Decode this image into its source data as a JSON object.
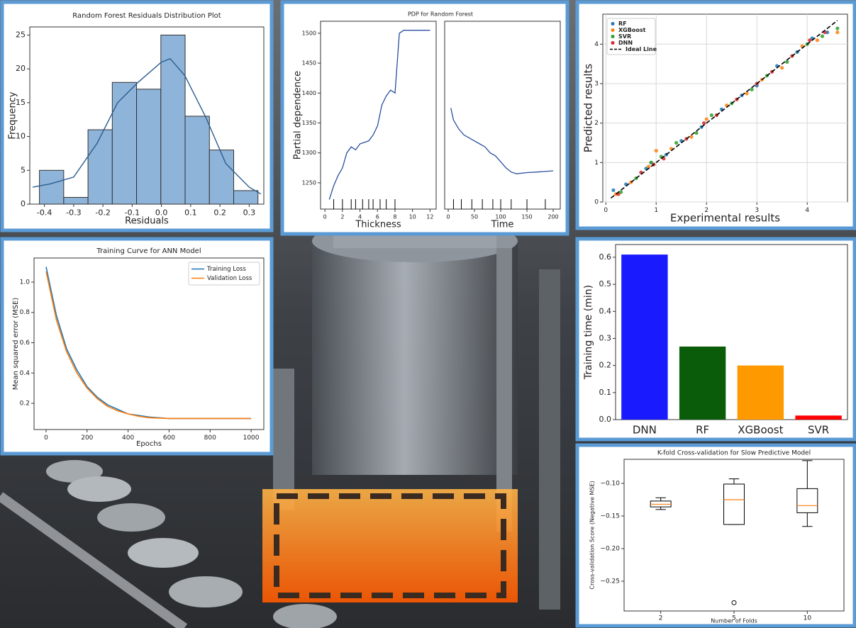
{
  "chart_data": [
    {
      "type": "histogram",
      "title": "Random Forest Residuals Distribution Plot",
      "xlabel": "Residuals",
      "ylabel": "Frequency",
      "bins": [
        -0.417,
        -0.334,
        -0.251,
        -0.168,
        -0.085,
        -0.002,
        0.081,
        0.164,
        0.247,
        0.33
      ],
      "counts": [
        5,
        1,
        11,
        18,
        17,
        25,
        13,
        8,
        2
      ],
      "color": "#8fb4d9",
      "kde": {
        "x": [
          -0.44,
          -0.38,
          -0.3,
          -0.22,
          -0.15,
          -0.08,
          0.0,
          0.03,
          0.08,
          0.15,
          0.22,
          0.3,
          0.34
        ],
        "values": [
          2.5,
          3,
          4,
          9,
          15,
          18,
          21,
          21.5,
          19,
          13,
          6,
          2.5,
          1.5
        ],
        "color": "#2c5d8f"
      },
      "xlim": [
        -0.45,
        0.35
      ],
      "xticks": [
        -0.4,
        -0.3,
        -0.2,
        -0.1,
        {
          "value": 0,
          "label": "0.0"
        },
        0.1,
        0.2,
        0.3
      ],
      "ylim": [
        0,
        26.2
      ],
      "yticks": [
        0,
        5,
        10,
        15,
        20,
        25
      ],
      "grid": false
    },
    {
      "type": "line",
      "title": "PDP for Random Forest",
      "ylabel": "Partial dependence",
      "color": "#2a4fa0",
      "ylim": [
        1206,
        1520
      ],
      "yticks": [
        1250,
        1300,
        1350,
        1400,
        1450,
        1500
      ],
      "grid": false,
      "panels": [
        {
          "xlabel": "Thickness",
          "xlim": [
            -0.5,
            12.7
          ],
          "xticks": [
            0,
            2,
            4,
            6,
            8,
            10,
            12
          ],
          "x": [
            0.5,
            1,
            1.5,
            2,
            2.5,
            3,
            3.5,
            4,
            5,
            5.5,
            6,
            6.5,
            7,
            7.5,
            8,
            8.5,
            9,
            12
          ],
          "values": [
            1222,
            1245,
            1262,
            1275,
            1300,
            1310,
            1305,
            1315,
            1320,
            1330,
            1345,
            1380,
            1395,
            1405,
            1400,
            1500,
            1505,
            1505
          ],
          "deciles": [
            1,
            2,
            3,
            3.5,
            4.3,
            5,
            5.5,
            6.3,
            7,
            8
          ]
        },
        {
          "xlabel": "Time",
          "xlim": [
            -6.8,
            213.5
          ],
          "xticks": [
            0,
            50,
            100,
            150,
            200
          ],
          "x": [
            5,
            10,
            20,
            30,
            40,
            50,
            60,
            70,
            80,
            90,
            100,
            110,
            120,
            130,
            150,
            170,
            200
          ],
          "values": [
            1375,
            1355,
            1340,
            1330,
            1325,
            1320,
            1315,
            1310,
            1300,
            1295,
            1285,
            1275,
            1268,
            1265,
            1267,
            1268,
            1270
          ],
          "deciles": [
            10,
            25,
            45,
            65,
            85,
            100,
            120,
            150,
            185
          ]
        }
      ]
    },
    {
      "type": "scatter",
      "xlabel": "Experimental results",
      "ylabel": "Predicted results",
      "legend": "upper left",
      "grid": true,
      "xlim": [
        -0.06,
        4.8
      ],
      "xticks": [
        0,
        1,
        2,
        3,
        4
      ],
      "ylim": [
        0,
        4.76
      ],
      "yticks": [
        0,
        1,
        2,
        3,
        4
      ],
      "series": [
        {
          "name": "RF",
          "color": "#1f77b4",
          "x": [
            0.15,
            0.4,
            0.8,
            0.9,
            1.2,
            1.5,
            1.9,
            2.3,
            2.7,
            3.0,
            3.4,
            3.8,
            4.1,
            4.4
          ],
          "values": [
            0.3,
            0.45,
            0.85,
            1.0,
            1.2,
            1.55,
            1.9,
            2.35,
            2.7,
            2.95,
            3.45,
            3.8,
            4.15,
            4.3
          ]
        },
        {
          "name": "XGBoost",
          "color": "#ff7f0e",
          "x": [
            0.2,
            0.5,
            0.85,
            1.0,
            1.3,
            1.7,
            2.0,
            2.4,
            2.8,
            3.1,
            3.5,
            3.9,
            4.2,
            4.6
          ],
          "values": [
            0.2,
            0.5,
            0.9,
            1.3,
            1.35,
            1.65,
            2.1,
            2.45,
            2.75,
            3.1,
            3.4,
            3.95,
            4.1,
            4.3
          ]
        },
        {
          "name": "SVR",
          "color": "#2ca02c",
          "x": [
            0.3,
            0.6,
            0.9,
            1.1,
            1.4,
            1.8,
            2.1,
            2.5,
            2.9,
            3.2,
            3.6,
            4.0,
            4.3,
            4.6
          ],
          "values": [
            0.25,
            0.6,
            1.0,
            1.15,
            1.5,
            1.75,
            2.2,
            2.5,
            2.85,
            3.2,
            3.55,
            4.0,
            4.2,
            4.4
          ]
        },
        {
          "name": "DNN",
          "color": "#d62728",
          "x": [
            0.25,
            0.7,
            0.95,
            1.15,
            1.6,
            1.95,
            2.2,
            2.6,
            3.0,
            3.3,
            3.7,
            4.05,
            4.35
          ],
          "values": [
            0.2,
            0.75,
            0.95,
            1.1,
            1.6,
            2.0,
            2.2,
            2.6,
            3.0,
            3.3,
            3.7,
            4.1,
            4.3
          ]
        }
      ],
      "ideal_line": {
        "name": "Ideal Line",
        "color": "#000000",
        "x": [
          0.1,
          4.6
        ],
        "values": [
          0.1,
          4.6
        ]
      }
    },
    {
      "type": "line",
      "title": "Training Curve for ANN Model",
      "xlabel": "Epochs",
      "ylabel": "Mean squared error (MSE)",
      "legend": "upper right",
      "grid": false,
      "xlim": [
        -58.8,
        1062
      ],
      "xticks": [
        0,
        200,
        400,
        600,
        800,
        1000
      ],
      "ylim": [
        0.027,
        1.159
      ],
      "yticks": [
        0.2,
        0.4,
        0.6,
        0.8,
        {
          "value": 1.0,
          "label": "1.0"
        }
      ],
      "x": [
        0,
        50,
        100,
        150,
        200,
        250,
        300,
        350,
        400,
        450,
        500,
        600,
        700,
        800,
        1000
      ],
      "series": [
        {
          "name": "Training Loss",
          "color": "#1f77b4",
          "values": [
            1.1,
            0.78,
            0.56,
            0.42,
            0.31,
            0.24,
            0.19,
            0.16,
            0.13,
            0.12,
            0.11,
            0.1,
            0.1,
            0.1,
            0.1
          ]
        },
        {
          "name": "Validation Loss",
          "color": "#ff7f0e",
          "values": [
            1.07,
            0.75,
            0.54,
            0.4,
            0.3,
            0.23,
            0.18,
            0.15,
            0.13,
            0.115,
            0.105,
            0.1,
            0.1,
            0.1,
            0.1
          ]
        }
      ]
    },
    {
      "type": "bar",
      "ylabel": "Training time (min)",
      "grid": false,
      "categories": [
        "DNN",
        "RF",
        "XGBoost",
        "SVR"
      ],
      "values": [
        0.61,
        0.27,
        0.2,
        0.015
      ],
      "colors": [
        "#1a1aff",
        "#0a5c0a",
        "#ff9900",
        "#ff0000"
      ],
      "ylim": [
        0,
        0.647
      ],
      "yticks": [
        {
          "value": 0,
          "label": "0.0"
        },
        0.1,
        0.2,
        0.3,
        0.4,
        0.5,
        0.6
      ]
    },
    {
      "type": "box",
      "title": "K-fold Cross-validation for Slow Predictive Model",
      "xlabel": "Number of Folds",
      "ylabel": "Cross-validation Score (Negative MSE)",
      "grid": false,
      "categories": [
        "2",
        "5",
        "10"
      ],
      "boxes": [
        {
          "low": -0.14,
          "q1": -0.136,
          "median": -0.132,
          "q3": -0.127,
          "high": -0.122,
          "outliers": []
        },
        {
          "low": -0.163,
          "q1": -0.163,
          "median": -0.125,
          "q3": -0.101,
          "high": -0.093,
          "outliers": [
            -0.283
          ]
        },
        {
          "low": -0.166,
          "q1": -0.145,
          "median": -0.134,
          "q3": -0.108,
          "high": -0.065,
          "outliers": []
        }
      ],
      "box_color": "#000000",
      "median_color": "#ff7f0e",
      "ylim": [
        -0.2957,
        -0.063
      ],
      "yticks": [
        {
          "value": -0.1,
          "label": "−0.10"
        },
        {
          "value": -0.15,
          "label": "−0.15"
        },
        {
          "value": -0.2,
          "label": "−0.20"
        },
        {
          "value": -0.25,
          "label": "−0.25"
        }
      ]
    }
  ]
}
